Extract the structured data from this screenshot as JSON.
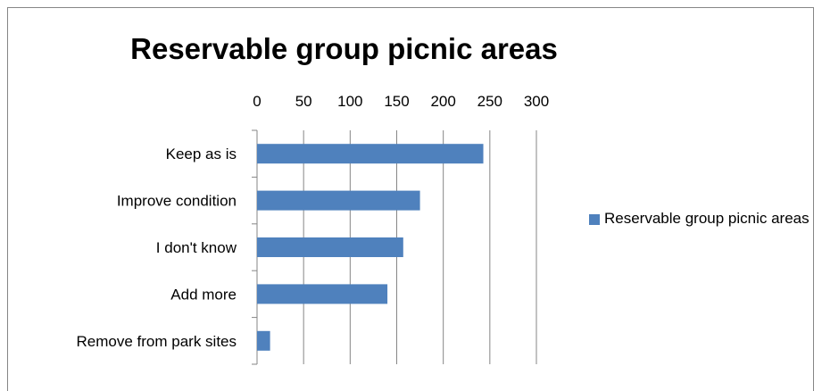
{
  "chart_data": {
    "type": "bar",
    "orientation": "horizontal",
    "title": "Reservable group picnic areas",
    "categories": [
      "Keep as is",
      "Improve condition",
      "I don't know",
      "Add more",
      "Remove from park sites"
    ],
    "series": [
      {
        "name": "Reservable group picnic areas",
        "values": [
          243,
          175,
          157,
          140,
          14
        ],
        "color": "#4f81bd"
      }
    ],
    "xlim": [
      0,
      300
    ],
    "x_ticks": [
      0,
      50,
      100,
      150,
      200,
      250,
      300
    ],
    "x_axis_position": "top",
    "grid": "vertical",
    "legend_position": "right"
  }
}
